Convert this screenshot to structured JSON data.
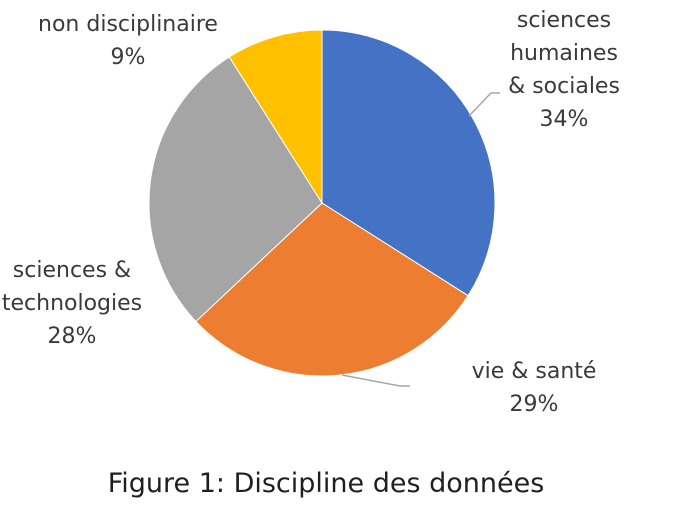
{
  "chart_data": {
    "type": "pie",
    "slices": [
      {
        "label": [
          "sciences",
          "humaines",
          "& sociales"
        ],
        "pct": "34%",
        "value": 34,
        "color": "#4472C4"
      },
      {
        "label": [
          "vie & santé"
        ],
        "pct": "29%",
        "value": 29,
        "color": "#ED7D31"
      },
      {
        "label": [
          "sciences &",
          "technologies"
        ],
        "pct": "28%",
        "value": 28,
        "color": "#A5A5A5"
      },
      {
        "label": [
          "non disciplinaire"
        ],
        "pct": "9%",
        "value": 9,
        "color": "#FFC000"
      }
    ],
    "caption": "Figure 1: Discipline des données"
  }
}
